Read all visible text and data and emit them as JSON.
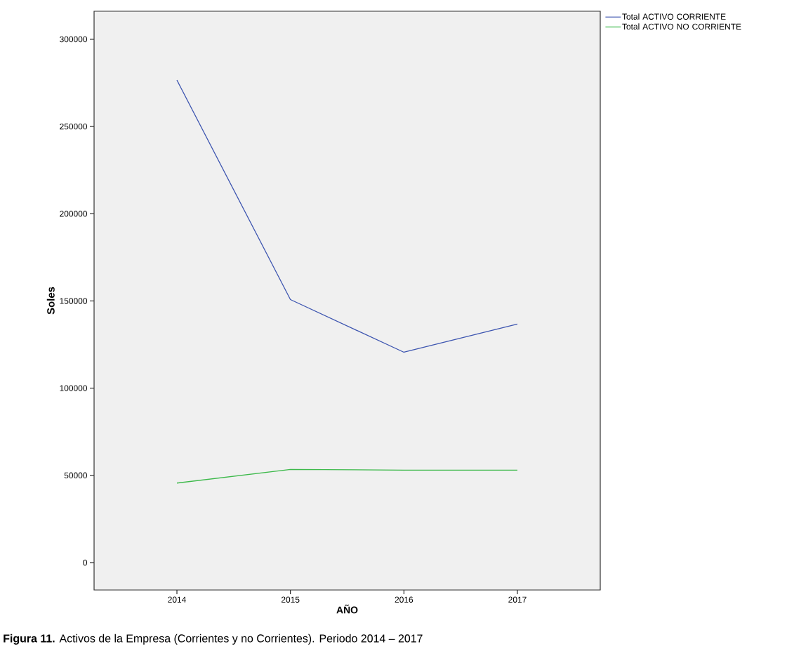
{
  "chart_data": {
    "type": "line",
    "xlabel": "AÑO",
    "ylabel": "Soles",
    "categories": [
      "2014",
      "2015",
      "2016",
      "2017"
    ],
    "series": [
      {
        "name": "Total ACTIVO CORRIENTE",
        "color": "#3d55b0",
        "values": [
          276600,
          150800,
          120600,
          136800
        ]
      },
      {
        "name": "Total ACTIVO NO CORRIENTE",
        "color": "#3cb94a",
        "values": [
          45600,
          53400,
          53000,
          53000
        ]
      }
    ],
    "ylim": [
      -15700,
      316100
    ],
    "yticks": [
      0,
      50000,
      100000,
      150000,
      200000,
      250000,
      300000
    ],
    "grid": false,
    "legend": "top right",
    "marker": "none",
    "line_style": "solid",
    "annotations": [
      "**Figura 11.** Activos de la Empresa (Corrientes y no Corrientes). Periodo 2014 – 2017"
    ]
  }
}
